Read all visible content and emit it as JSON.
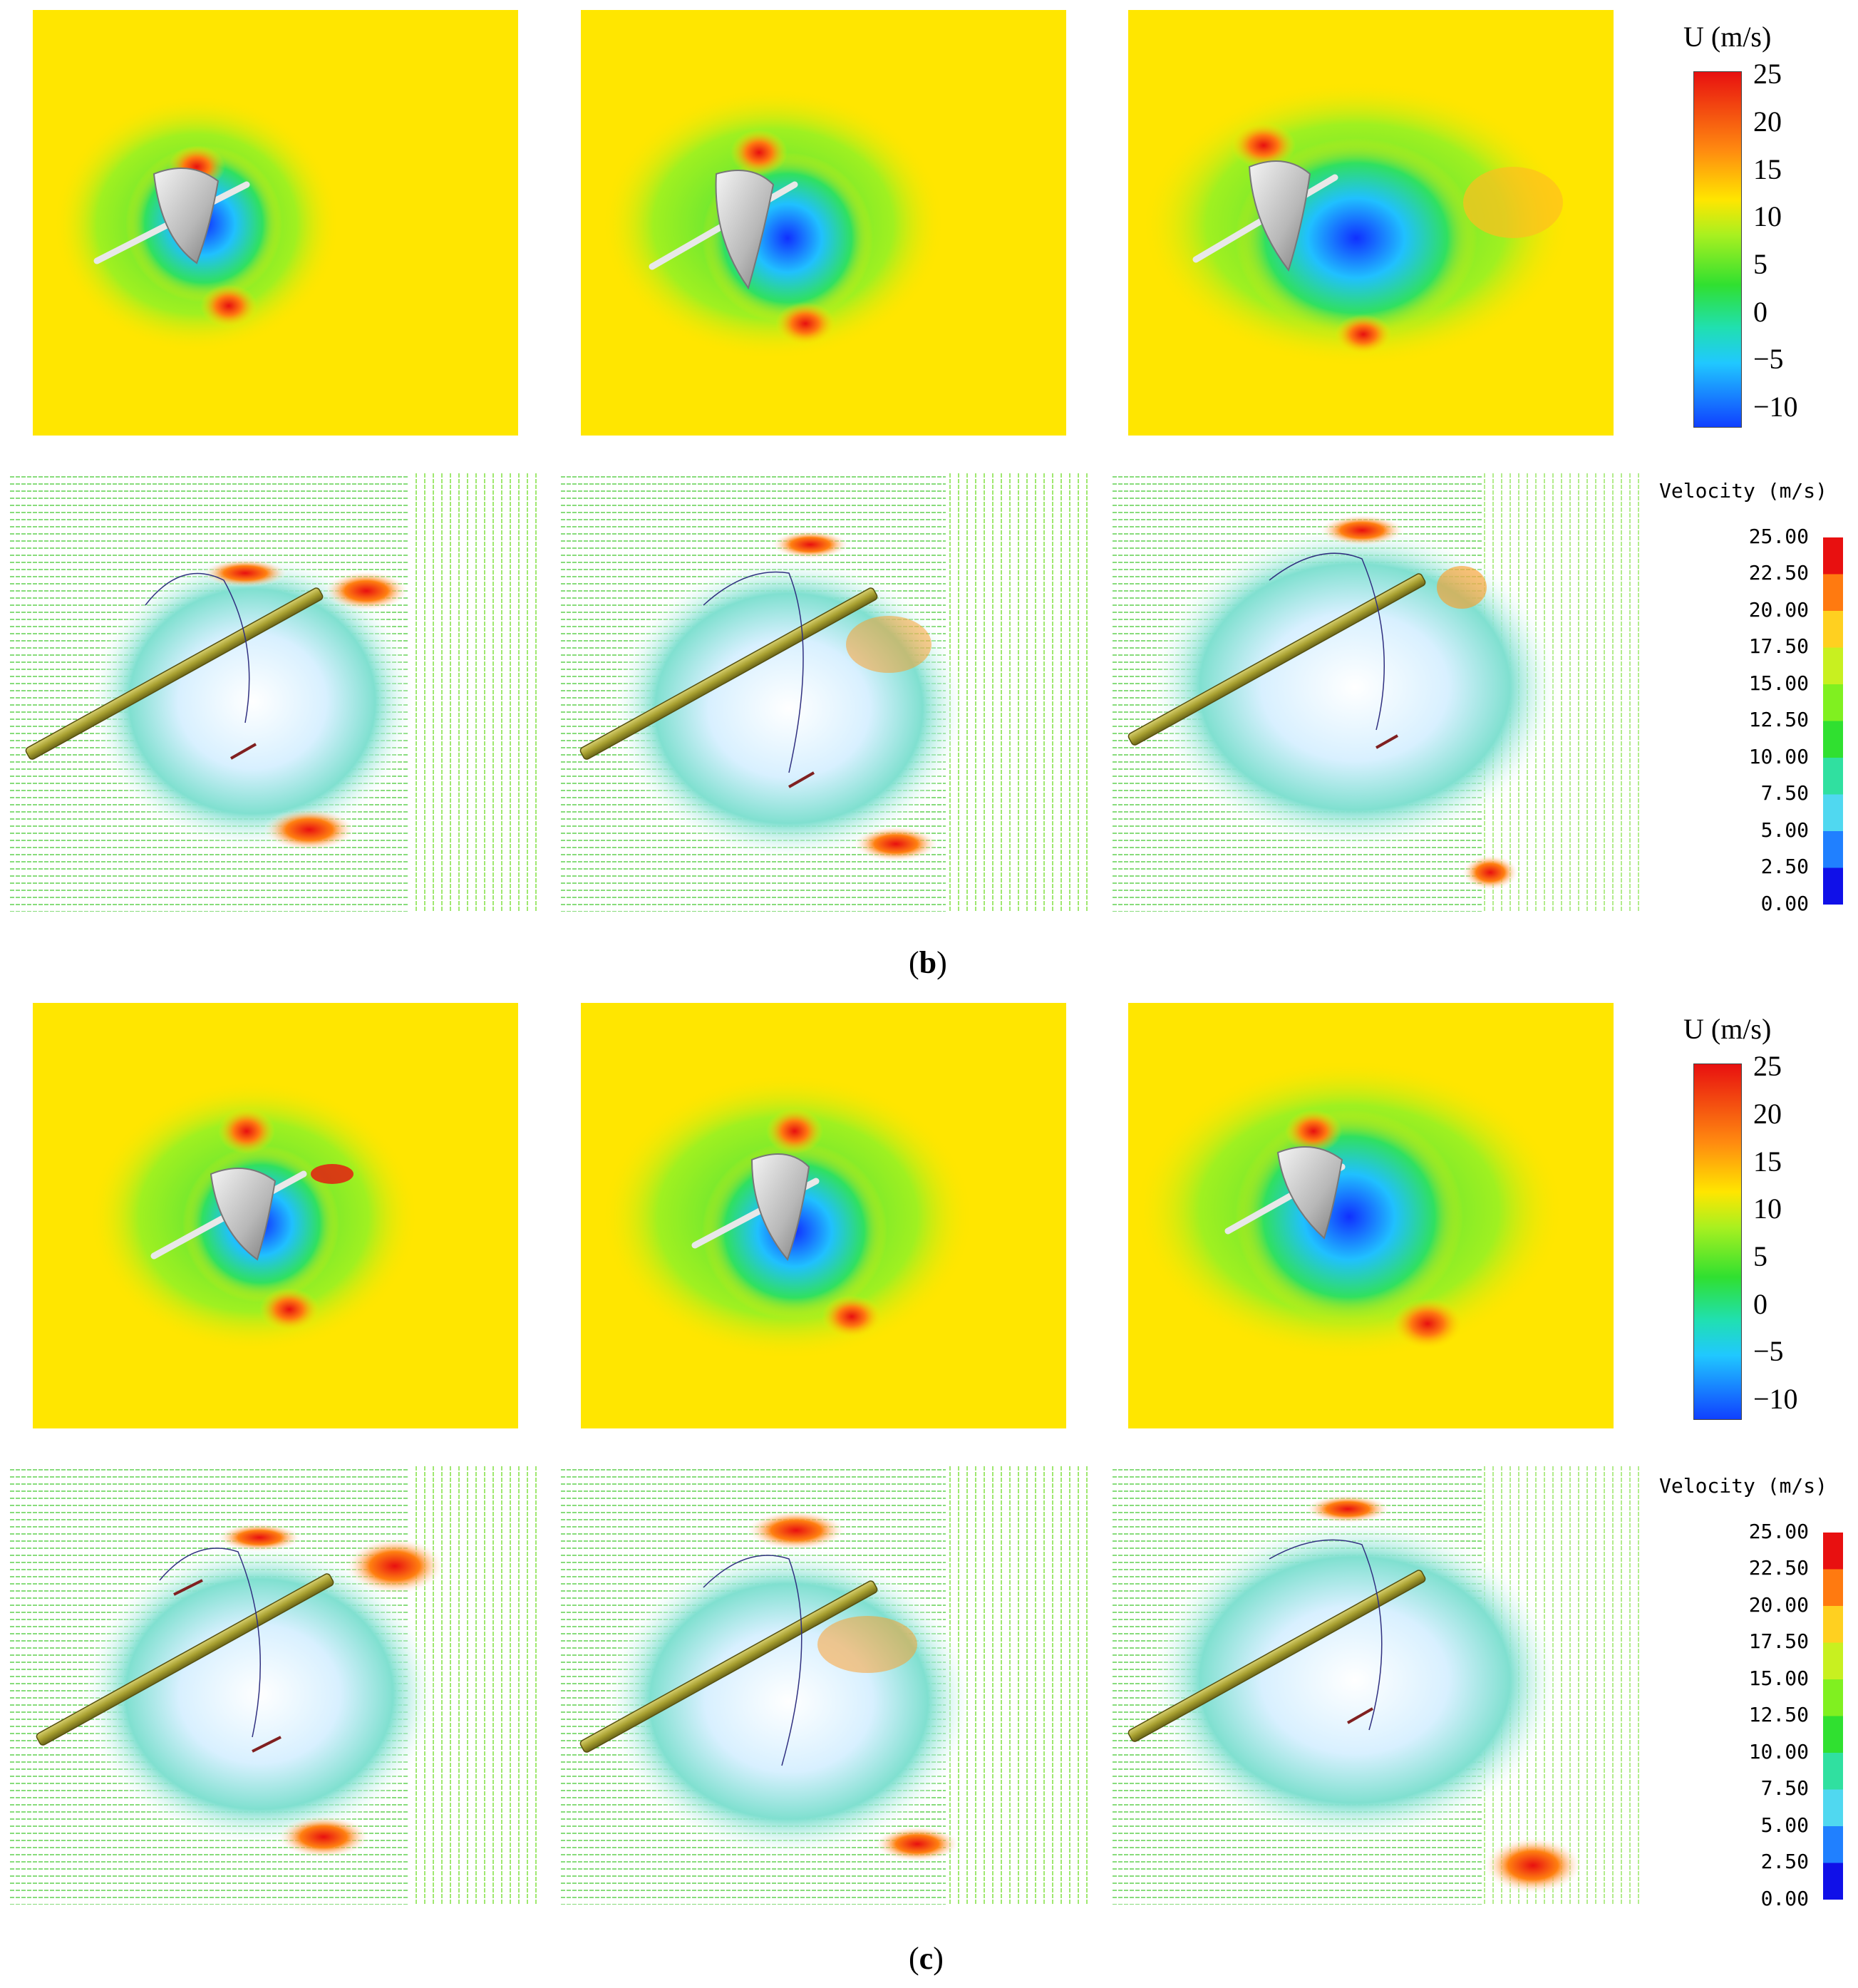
{
  "colorbar_U": {
    "title": "U (m/s)",
    "ticks": [
      "25",
      "20",
      "15",
      "10",
      "5",
      "0",
      "−5",
      "−10"
    ]
  },
  "colorbar_velocity": {
    "title": "Velocity (m/s)",
    "ticks": [
      "25.00",
      "22.50",
      "20.00",
      "17.50",
      "15.00",
      "12.50",
      "10.00",
      "7.50",
      "5.00",
      "2.50",
      "0.00"
    ]
  },
  "captions": {
    "b": {
      "open": "(",
      "letter": "b",
      "close": ")"
    },
    "c": {
      "open": "(",
      "letter": "c",
      "close": ")"
    }
  },
  "colors": {
    "field_background": "#ffe600",
    "low": "#1040ff",
    "mid": "#30e030",
    "high": "#e81010",
    "rod": "#a8a030"
  }
}
